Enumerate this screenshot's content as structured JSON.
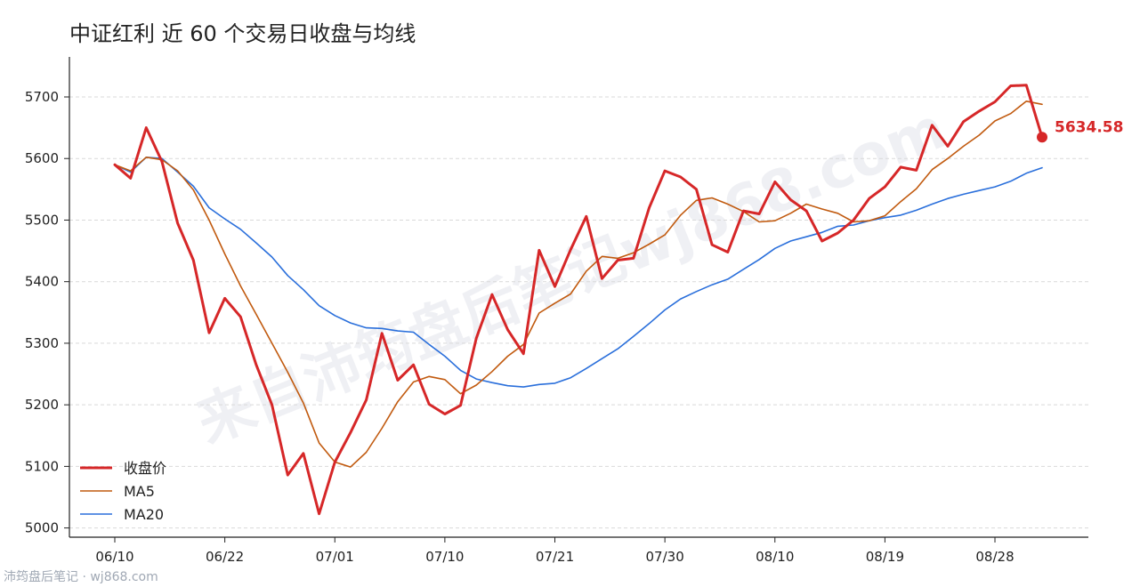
{
  "title": "中证红利 近 60 个交易日收盘与均线",
  "footer": "沛筠盘后笔记 · wj868.com",
  "watermark": "来自沛筠盘后笔记wj868.com",
  "colors": {
    "close": "#d62728",
    "ma5": "#c15a0f",
    "ma20": "#2a6fdb",
    "grid": "#d9d9d9",
    "axis": "#222222"
  },
  "chart_data": {
    "type": "line",
    "title": "中证红利 近 60 个交易日收盘与均线",
    "ylim": [
      4985,
      5765
    ],
    "yticks": [
      5000,
      5100,
      5200,
      5300,
      5400,
      5500,
      5600,
      5700
    ],
    "xticks": [
      {
        "label": "06/10",
        "index": 0
      },
      {
        "label": "06/22",
        "index": 7
      },
      {
        "label": "07/01",
        "index": 14
      },
      {
        "label": "07/10",
        "index": 21
      },
      {
        "label": "07/21",
        "index": 28
      },
      {
        "label": "07/30",
        "index": 35
      },
      {
        "label": "08/10",
        "index": 42
      },
      {
        "label": "08/19",
        "index": 49
      },
      {
        "label": "08/28",
        "index": 56
      }
    ],
    "grid": "horizontal dashed",
    "legend_position": "bottom-left",
    "series": [
      {
        "name": "收盘价",
        "color": "#d62728",
        "width": 3,
        "values": [
          5590,
          5568,
          5650,
          5595,
          5495,
          5435,
          5317,
          5373,
          5343,
          5265,
          5200,
          5086,
          5121,
          5023,
          5107,
          5155,
          5208,
          5316,
          5240,
          5265,
          5201,
          5185,
          5199,
          5308,
          5379,
          5322,
          5283,
          5451,
          5392,
          5452,
          5506,
          5405,
          5435,
          5438,
          5520,
          5580,
          5570,
          5550,
          5460,
          5448,
          5515,
          5510,
          5562,
          5533,
          5515,
          5466,
          5479,
          5500,
          5535,
          5554,
          5586,
          5581,
          5654,
          5620,
          5660,
          5677,
          5692,
          5718,
          5719,
          5634.58
        ]
      },
      {
        "name": "MA5",
        "color": "#c15a0f",
        "width": 1.6,
        "values": [
          5590,
          5580,
          5602,
          5598,
          5580,
          5549,
          5500,
          5445,
          5393,
          5347,
          5300,
          5253,
          5203,
          5138,
          5107,
          5099,
          5123,
          5162,
          5205,
          5237,
          5246,
          5241,
          5218,
          5232,
          5254,
          5279,
          5298,
          5349,
          5365,
          5380,
          5417,
          5441,
          5438,
          5447,
          5461,
          5476,
          5508,
          5532,
          5536,
          5526,
          5514,
          5497,
          5499,
          5511,
          5526,
          5518,
          5511,
          5497,
          5499,
          5507,
          5530,
          5551,
          5582,
          5600,
          5620,
          5638,
          5661,
          5673,
          5693,
          5688
        ]
      },
      {
        "name": "MA20",
        "color": "#2a6fdb",
        "width": 1.6,
        "values": [
          5590,
          5578,
          5602,
          5600,
          5578,
          5555,
          5520,
          5502,
          5485,
          5463,
          5440,
          5410,
          5387,
          5361,
          5345,
          5333,
          5325,
          5324,
          5320,
          5318,
          5298,
          5279,
          5256,
          5242,
          5236,
          5231,
          5229,
          5233,
          5235,
          5244,
          5259,
          5275,
          5291,
          5311,
          5332,
          5354,
          5372,
          5384,
          5395,
          5404,
          5420,
          5436,
          5454,
          5466,
          5473,
          5480,
          5490,
          5492,
          5499,
          5504,
          5508,
          5516,
          5526,
          5535,
          5542,
          5548,
          5554,
          5563,
          5576,
          5585
        ]
      }
    ],
    "last_value_label": "5634.58"
  }
}
